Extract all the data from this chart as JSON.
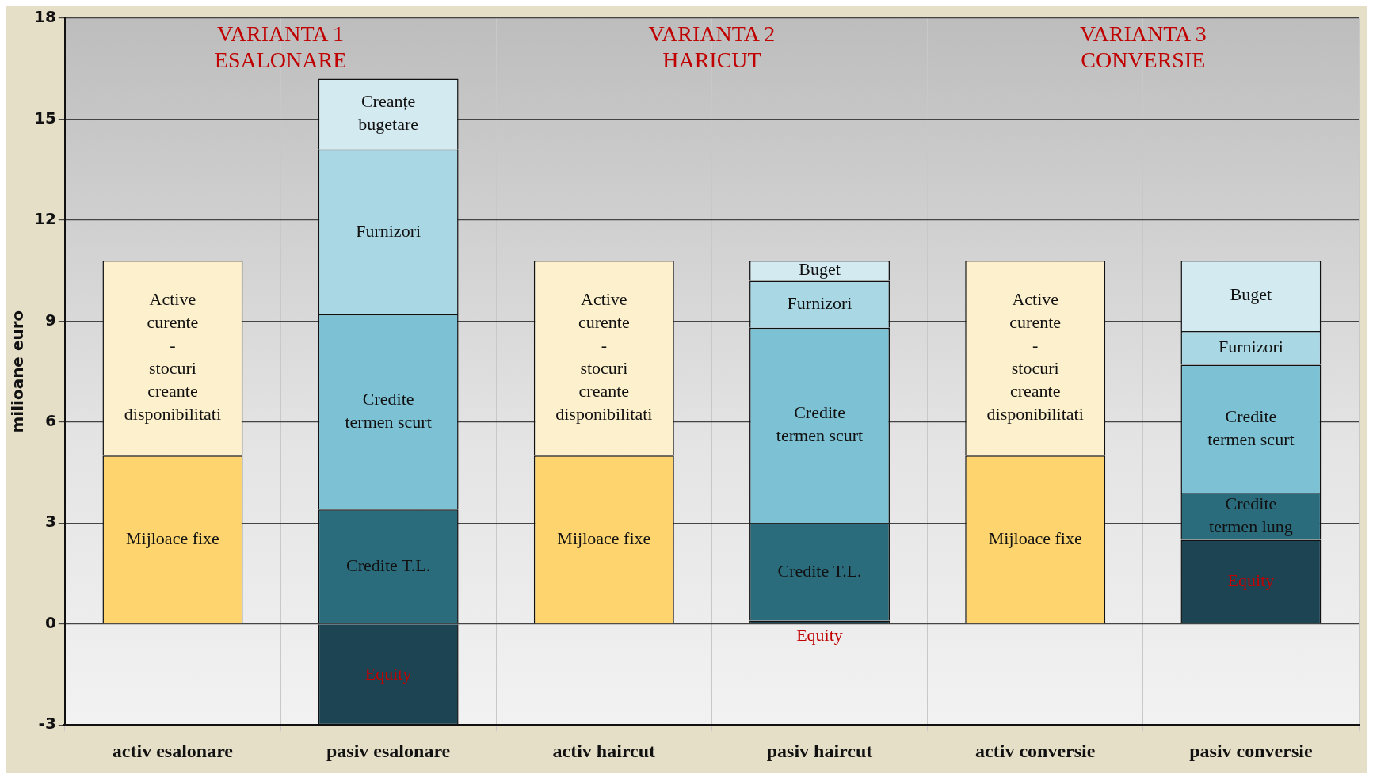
{
  "chart_data": {
    "type": "bar",
    "stacked": true,
    "ylabel": "milioane euro",
    "categories": [
      "activ esalonare",
      "pasiv esalonare",
      "activ haircut",
      "pasiv haircut",
      "activ conversie",
      "pasiv conversie"
    ],
    "series": [
      {
        "color": "#fdd46e",
        "values": [
          5,
          null,
          5,
          null,
          5,
          null
        ],
        "value_labels": [
          "Mijloace fixe",
          null,
          "Mijloace fixe",
          null,
          "Mijloace fixe",
          null
        ]
      },
      {
        "color": "#fdf0cc",
        "values": [
          5.8,
          null,
          5.8,
          null,
          5.8,
          null
        ],
        "value_labels": [
          "Active\ncurente\n-\nstocuri\ncreante\ndisponibilitati",
          null,
          "Active\ncurente\n-\nstocuri\ncreante\ndisponibilitati",
          null,
          "Active\ncurente\n-\nstocuri\ncreante\ndisponibilitati",
          null
        ]
      },
      {
        "color": "#1d4452",
        "values": [
          null,
          -3,
          null,
          0.1,
          null,
          2.5
        ],
        "value_labels": [
          null,
          "Equity",
          null,
          "Equity",
          null,
          "Equity"
        ]
      },
      {
        "color": "#2a6b7c",
        "values": [
          null,
          3.4,
          null,
          2.9,
          null,
          1.4
        ],
        "value_labels": [
          null,
          "Credite T.L.",
          null,
          "Credite T.L.",
          null,
          "Credite\ntermen lung"
        ]
      },
      {
        "color": "#7dc1d4",
        "values": [
          null,
          5.8,
          null,
          5.8,
          null,
          3.8
        ],
        "value_labels": [
          null,
          "Credite\ntermen scurt",
          null,
          "Credite\ntermen scurt",
          null,
          "Credite\ntermen scurt"
        ]
      },
      {
        "color": "#a9d8e4",
        "values": [
          null,
          4.9,
          null,
          1.4,
          null,
          1.0
        ],
        "value_labels": [
          null,
          "Furnizori",
          null,
          "Furnizori",
          null,
          "Furnizori"
        ]
      },
      {
        "color": "#d4eaf1",
        "values": [
          null,
          2.1,
          null,
          0.6,
          null,
          2.1
        ],
        "value_labels": [
          null,
          "Creanțe\nbugetare",
          null,
          "Buget",
          null,
          "Buget"
        ]
      }
    ],
    "ylim": [
      -3,
      18
    ],
    "yticks": [
      -3,
      0,
      3,
      6,
      9,
      12,
      15,
      18
    ],
    "grid": true,
    "annotations": [
      "VARIANTA 1\nESALONARE",
      "VARIANTA 2\nHARICUT",
      "VARIANTA 3\nCONVERSIE"
    ]
  }
}
